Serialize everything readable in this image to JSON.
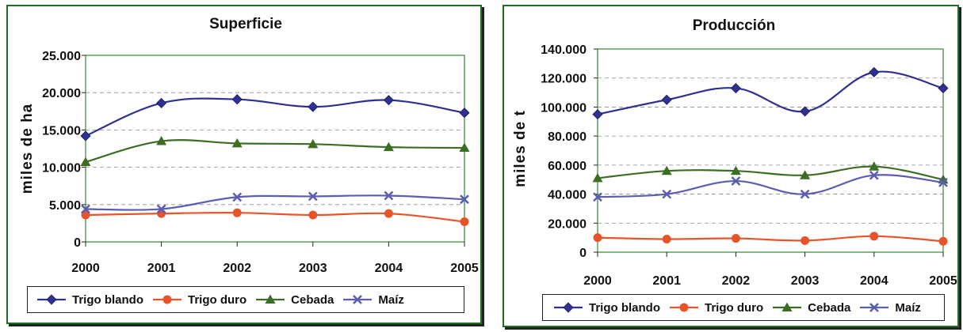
{
  "chart_data": [
    {
      "type": "line",
      "title": "Superficie",
      "ylabel": "miles de ha",
      "xlabel": "",
      "categories": [
        "2000",
        "2001",
        "2002",
        "2003",
        "2004",
        "2005"
      ],
      "ylim": [
        0,
        25000
      ],
      "yticks": [
        "0",
        "5.000",
        "10.000",
        "15.000",
        "20.000",
        "25.000"
      ],
      "grid": true,
      "legend_position": "bottom",
      "series": [
        {
          "name": "Trigo blando",
          "color": "#2e3192",
          "marker": "diamond",
          "values": [
            14200,
            18600,
            19100,
            18100,
            19000,
            17300
          ]
        },
        {
          "name": "Trigo duro",
          "color": "#e8542a",
          "marker": "circle",
          "values": [
            3600,
            3800,
            3900,
            3600,
            3800,
            2700
          ]
        },
        {
          "name": "Cebada",
          "color": "#3b6e22",
          "marker": "triangle",
          "values": [
            10700,
            13500,
            13200,
            13100,
            12700,
            12600
          ]
        },
        {
          "name": "Maíz",
          "color": "#5a5db0",
          "marker": "x",
          "values": [
            4400,
            4400,
            6000,
            6100,
            6200,
            5700
          ]
        }
      ]
    },
    {
      "type": "line",
      "title": "Producción",
      "ylabel": "miles de t",
      "xlabel": "",
      "categories": [
        "2000",
        "2001",
        "2002",
        "2003",
        "2004",
        "2005"
      ],
      "ylim": [
        0,
        140000
      ],
      "yticks": [
        "0",
        "20.000",
        "40.000",
        "60.000",
        "80.000",
        "100.000",
        "120.000",
        "140.000"
      ],
      "grid": true,
      "legend_position": "bottom",
      "series": [
        {
          "name": "Trigo blando",
          "color": "#2e3192",
          "marker": "diamond",
          "values": [
            95000,
            105000,
            113000,
            97000,
            124000,
            113000
          ]
        },
        {
          "name": "Trigo duro",
          "color": "#e8542a",
          "marker": "circle",
          "values": [
            10000,
            9000,
            9500,
            8000,
            11000,
            7500
          ]
        },
        {
          "name": "Cebada",
          "color": "#3b6e22",
          "marker": "triangle",
          "values": [
            51000,
            56000,
            56000,
            53000,
            59000,
            50000
          ]
        },
        {
          "name": "Maíz",
          "color": "#5a5db0",
          "marker": "x",
          "values": [
            38000,
            40000,
            49000,
            40000,
            53000,
            48000
          ]
        }
      ]
    }
  ]
}
